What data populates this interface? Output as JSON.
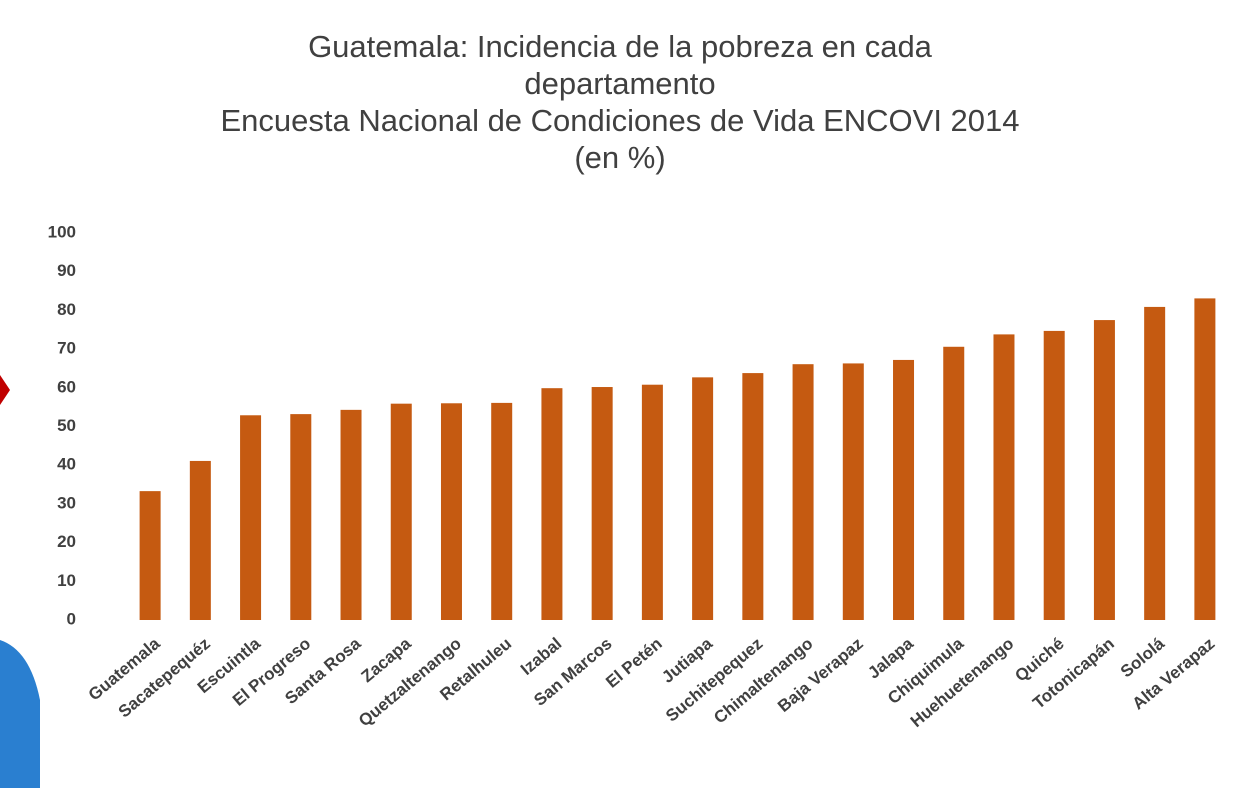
{
  "chart_data": {
    "type": "bar",
    "title": "Guatemala: Incidencia de la pobreza en cada departamento",
    "subtitle": "Encuesta Nacional de Condiciones de Vida ENCOVI 2014",
    "unit": "(en %)",
    "categories": [
      "Guatemala",
      "Sacatepequéz",
      "Escuintla",
      "El Progreso",
      "Santa Rosa",
      "Zacapa",
      "Quetzaltenango",
      "Retalhuleu",
      "Izabal",
      "San Marcos",
      "El Petén",
      "Jutiapa",
      "Suchitepequez",
      "Chimaltenango",
      "Baja Verapaz",
      "Jalapa",
      "Chiquimula",
      "Huehuetenango",
      "Quiché",
      "Totonicapán",
      "Sololá",
      "Alta Verapaz"
    ],
    "values": [
      33.3,
      41.1,
      52.9,
      53.2,
      54.3,
      55.9,
      56.0,
      56.1,
      59.9,
      60.2,
      60.8,
      62.7,
      63.8,
      66.1,
      66.3,
      67.2,
      70.6,
      73.8,
      74.7,
      77.5,
      80.9,
      83.1
    ],
    "color": "#c55a11",
    "ylim": [
      0,
      100
    ],
    "yticks": [
      0,
      10,
      20,
      30,
      40,
      50,
      60,
      70,
      80,
      90,
      100
    ],
    "grid": false
  }
}
